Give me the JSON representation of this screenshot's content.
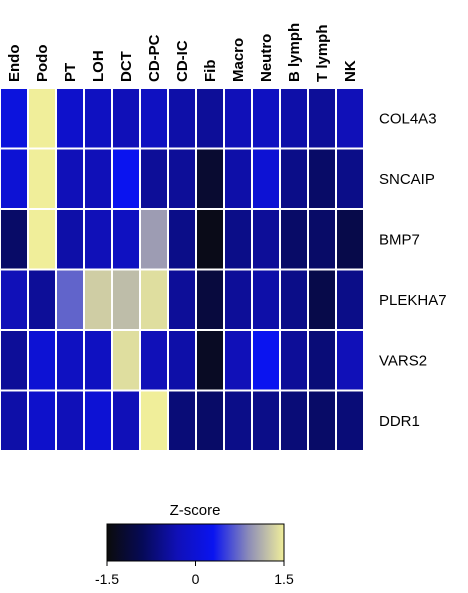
{
  "chart_data": {
    "type": "heatmap",
    "columns": [
      "Endo",
      "Podo",
      "PT",
      "LOH",
      "DCT",
      "CD-PC",
      "CD-IC",
      "Fib",
      "Macro",
      "Neutro",
      "B lymph",
      "T lymph",
      "NK"
    ],
    "rows": [
      "COL4A3",
      "SNCAIP",
      "BMP7",
      "PLEKHA7",
      "VARS2",
      "DDR1"
    ],
    "values": [
      [
        0.1,
        1.5,
        -0.1,
        -0.2,
        -0.3,
        -0.2,
        -0.4,
        -0.5,
        -0.3,
        -0.2,
        -0.4,
        -0.5,
        -0.3
      ],
      [
        0.0,
        1.5,
        -0.3,
        -0.3,
        0.3,
        -0.5,
        -0.5,
        -1.2,
        -0.4,
        0.0,
        -0.6,
        -0.8,
        -0.6
      ],
      [
        -0.8,
        1.5,
        -0.4,
        -0.3,
        -0.2,
        1.0,
        -0.6,
        -1.4,
        -0.6,
        -0.5,
        -0.8,
        -0.8,
        -1.0
      ],
      [
        -0.3,
        -0.5,
        0.7,
        1.3,
        1.2,
        1.4,
        -0.5,
        -1.1,
        -0.5,
        -0.4,
        -0.6,
        -1.0,
        -0.6
      ],
      [
        -0.5,
        0.0,
        -0.2,
        -0.2,
        1.4,
        -0.3,
        -0.4,
        -1.3,
        -0.3,
        0.3,
        -0.5,
        -0.7,
        -0.3
      ],
      [
        -0.4,
        -0.1,
        -0.3,
        0.0,
        -0.3,
        1.5,
        -0.7,
        -0.8,
        -0.6,
        -0.6,
        -0.7,
        -0.8,
        -0.7
      ]
    ],
    "colorbar": {
      "title": "Z-score",
      "range": [
        -1.5,
        1.5
      ],
      "tick_values": [
        -1.5,
        0,
        1.5
      ],
      "tick_labels": [
        "-1.5",
        "0",
        "1.5"
      ],
      "colors": [
        "#0b0b0b",
        "#060a57",
        "#1010b8",
        "#0a14f0",
        "#8c8cb8",
        "#f0ee9a"
      ]
    },
    "grid_line_color": "#ffffff"
  }
}
